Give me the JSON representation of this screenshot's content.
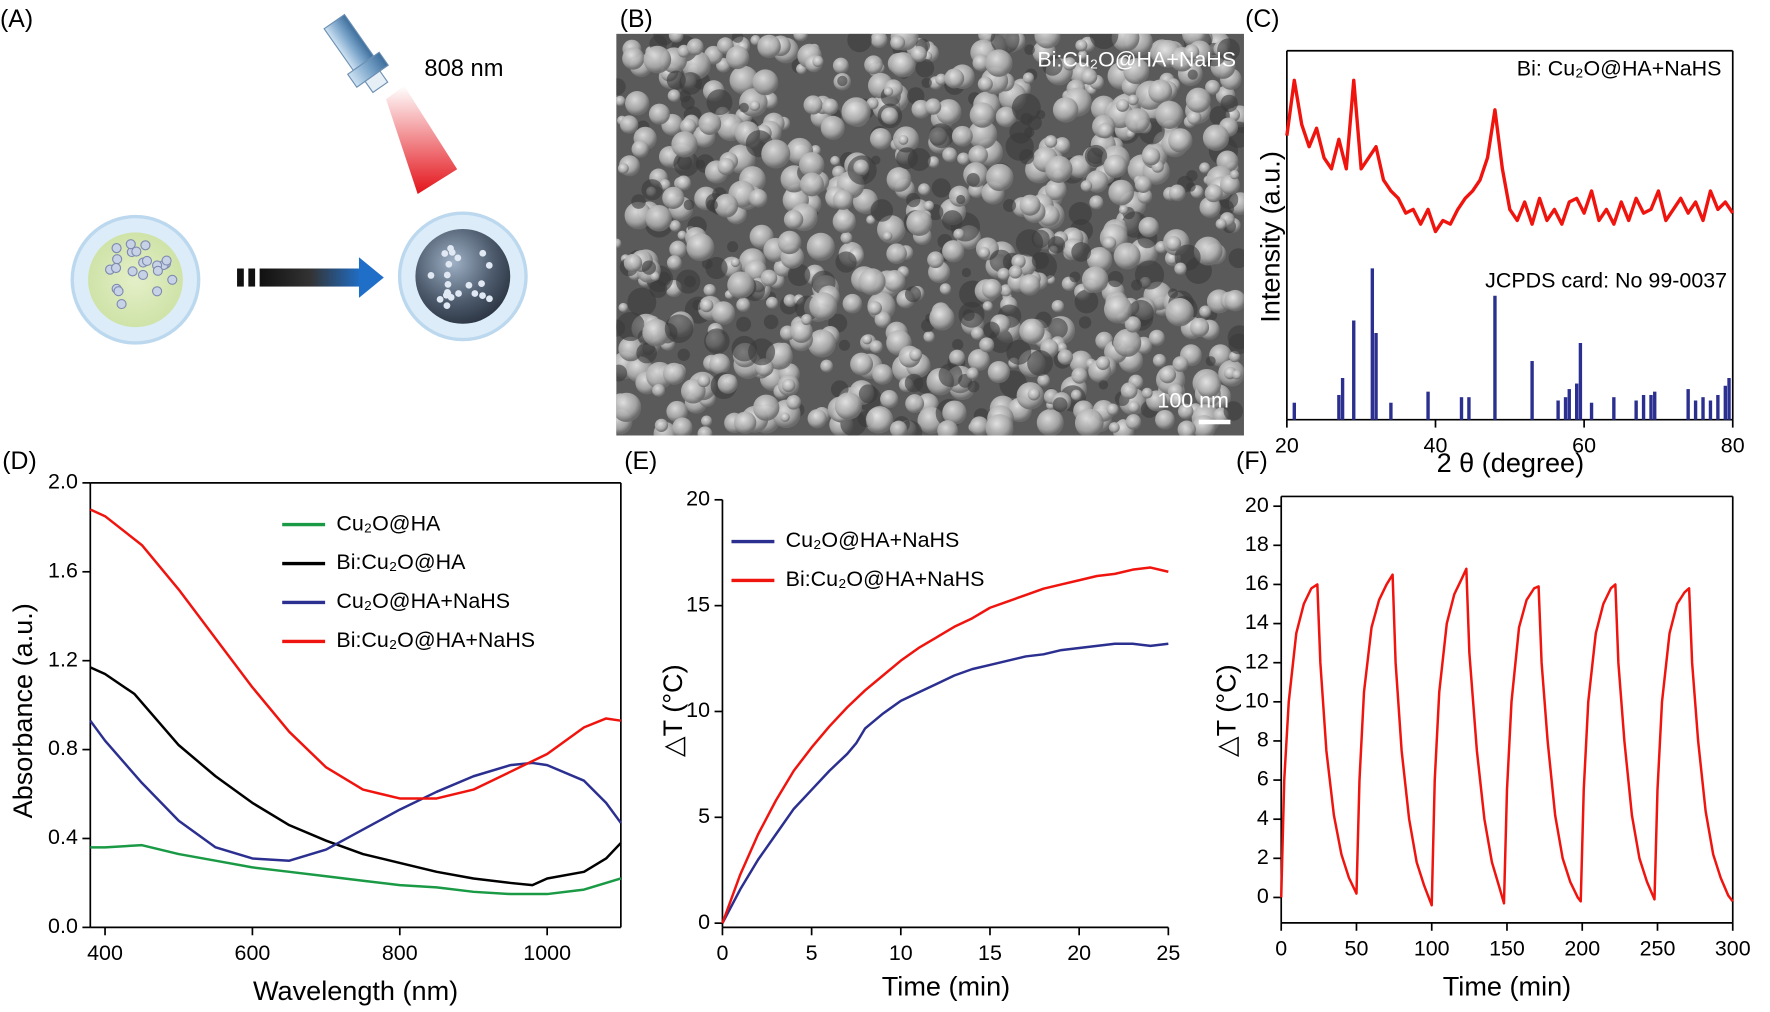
{
  "figure": {
    "panel_labels": [
      "(A)",
      "(B)",
      "(C)",
      "(D)",
      "(E)",
      "(F)"
    ],
    "schematic": {
      "laser_label": "808 nm"
    },
    "micrograph": {
      "label": "Bi:Cu₂O@HA+NaHS",
      "scale_bar": "100 nm"
    }
  },
  "chart_data": [
    {
      "type": "line",
      "xlabel": "2 θ (degree)",
      "ylabel": "Intensity (a.u.)",
      "xlim": [
        20,
        80
      ],
      "ylim": [
        0,
        100
      ],
      "xticks": [
        20,
        40,
        60,
        80
      ],
      "series": [
        {
          "name": "Bi: Cu₂O@HA+NaHS",
          "color": "#f0140f",
          "x": [
            20,
            21,
            22,
            23,
            24,
            25,
            26,
            27,
            28,
            29,
            30,
            31,
            32,
            33,
            34,
            35,
            36,
            37,
            38,
            39,
            40,
            41,
            42,
            43,
            44,
            45,
            46,
            47,
            48,
            49,
            50,
            51,
            52,
            53,
            54,
            55,
            56,
            57,
            58,
            59,
            60,
            61,
            62,
            63,
            64,
            65,
            66,
            67,
            68,
            69,
            70,
            71,
            72,
            73,
            74,
            75,
            76,
            77,
            78,
            79,
            80
          ],
          "values": [
            77,
            92,
            80,
            74,
            79,
            71,
            68,
            76,
            68,
            92,
            68,
            71,
            74,
            65,
            62,
            60,
            56,
            57,
            53,
            57,
            51,
            54,
            53,
            57,
            60,
            62,
            65,
            71,
            84,
            68,
            57,
            54,
            59,
            53,
            60,
            54,
            57,
            53,
            59,
            60,
            56,
            62,
            54,
            57,
            53,
            59,
            54,
            60,
            56,
            57,
            62,
            54,
            57,
            60,
            56,
            59,
            54,
            62,
            57,
            59,
            56
          ]
        },
        {
          "name": "JCPDS card: No 99-0037",
          "color": "#2b2f8f",
          "style": "stick",
          "x": [
            21,
            27,
            27.5,
            29,
            31.5,
            32,
            34,
            39,
            43.5,
            44.5,
            48,
            53,
            56.5,
            57.5,
            58,
            59,
            59.5,
            61,
            64,
            67,
            68,
            69,
            69.5,
            74,
            75,
            76,
            77,
            78,
            79,
            79.5
          ],
          "values": [
            4.6,
            6.7,
            11.3,
            26.9,
            41,
            23.5,
            4.6,
            7.6,
            6.1,
            6.1,
            33.6,
            15.9,
            5.2,
            6.1,
            8.3,
            9.8,
            20.8,
            4.6,
            6.1,
            5.2,
            6.7,
            6.7,
            7.6,
            8.3,
            5.2,
            6.1,
            5.2,
            6.7,
            9.2,
            11.3
          ]
        }
      ]
    },
    {
      "type": "line",
      "xlabel": "Wavelength (nm)",
      "ylabel": "Absorbance (a.u.)",
      "xlim": [
        380,
        1100
      ],
      "ylim": [
        0,
        2
      ],
      "xticks": [
        400,
        600,
        800,
        1000
      ],
      "yticks": [
        {
          "value": 0,
          "label": "0.0"
        },
        0.4,
        0.8,
        1.2,
        1.6,
        {
          "value": 2,
          "label": "2.0"
        }
      ],
      "legend": "upper right",
      "series": [
        {
          "name": "Cu₂O@HA",
          "color": "#1a9a45",
          "x": [
            380,
            400,
            450,
            500,
            550,
            600,
            650,
            700,
            750,
            800,
            850,
            900,
            950,
            980,
            1000,
            1050,
            1100
          ],
          "values": [
            0.36,
            0.36,
            0.37,
            0.33,
            0.3,
            0.27,
            0.25,
            0.23,
            0.21,
            0.19,
            0.18,
            0.16,
            0.15,
            0.15,
            0.15,
            0.17,
            0.22
          ]
        },
        {
          "name": "Bi:Cu₂O@HA",
          "color": "#000000",
          "x": [
            380,
            400,
            440,
            500,
            550,
            600,
            650,
            700,
            750,
            800,
            850,
            900,
            950,
            980,
            1000,
            1050,
            1080,
            1100
          ],
          "values": [
            1.17,
            1.14,
            1.05,
            0.82,
            0.68,
            0.56,
            0.46,
            0.39,
            0.33,
            0.29,
            0.25,
            0.22,
            0.2,
            0.19,
            0.22,
            0.25,
            0.31,
            0.38
          ]
        },
        {
          "name": "Cu₂O@HA+NaHS",
          "color": "#2b2f8f",
          "x": [
            380,
            400,
            450,
            500,
            550,
            600,
            650,
            700,
            750,
            800,
            850,
            900,
            950,
            980,
            1000,
            1050,
            1080,
            1100
          ],
          "values": [
            0.93,
            0.84,
            0.65,
            0.48,
            0.36,
            0.31,
            0.3,
            0.35,
            0.44,
            0.53,
            0.61,
            0.68,
            0.73,
            0.74,
            0.73,
            0.66,
            0.56,
            0.47
          ]
        },
        {
          "name": "Bi:Cu₂O@HA+NaHS",
          "color": "#f0140f",
          "x": [
            380,
            400,
            450,
            500,
            550,
            600,
            650,
            700,
            750,
            800,
            850,
            900,
            950,
            1000,
            1050,
            1080,
            1100
          ],
          "values": [
            1.88,
            1.85,
            1.72,
            1.52,
            1.3,
            1.08,
            0.88,
            0.72,
            0.62,
            0.58,
            0.58,
            0.62,
            0.7,
            0.78,
            0.9,
            0.94,
            0.93
          ]
        }
      ]
    },
    {
      "type": "line",
      "xlabel": "Time (min)",
      "ylabel": "△T (°C)",
      "xlim": [
        0,
        25
      ],
      "ylim": [
        -0.2,
        20
      ],
      "xticks": [
        0,
        5,
        10,
        15,
        20,
        25
      ],
      "yticks": [
        0,
        5,
        10,
        15,
        20
      ],
      "legend": "upper left",
      "series": [
        {
          "name": "Cu₂O@HA+NaHS",
          "color": "#2b2f8f",
          "x": [
            0,
            1,
            2,
            3,
            4,
            5,
            6,
            7,
            7.5,
            8,
            9,
            10,
            11,
            12,
            13,
            14,
            15,
            16,
            17,
            18,
            19,
            20,
            21,
            22,
            23,
            24,
            25
          ],
          "values": [
            0,
            1.6,
            3.0,
            4.2,
            5.4,
            6.3,
            7.2,
            8.0,
            8.5,
            9.2,
            9.9,
            10.5,
            10.9,
            11.3,
            11.7,
            12.0,
            12.2,
            12.4,
            12.6,
            12.7,
            12.9,
            13.0,
            13.1,
            13.2,
            13.2,
            13.1,
            13.2
          ]
        },
        {
          "name": "Bi:Cu₂O@HA+NaHS",
          "color": "#f0140f",
          "x": [
            0,
            1,
            2,
            3,
            4,
            5,
            6,
            7,
            8,
            9,
            10,
            11,
            12,
            13,
            14,
            15,
            16,
            17,
            18,
            19,
            20,
            21,
            22,
            23,
            24,
            25
          ],
          "values": [
            0,
            2.3,
            4.2,
            5.8,
            7.2,
            8.3,
            9.3,
            10.2,
            11.0,
            11.7,
            12.4,
            13.0,
            13.5,
            14.0,
            14.4,
            14.9,
            15.2,
            15.5,
            15.8,
            16.0,
            16.2,
            16.4,
            16.5,
            16.7,
            16.8,
            16.6
          ]
        }
      ]
    },
    {
      "type": "line",
      "xlabel": "Time (min)",
      "ylabel": "△T (°C)",
      "xlim": [
        0,
        300
      ],
      "ylim": [
        -1.3,
        20.5
      ],
      "xticks": [
        0,
        50,
        100,
        150,
        200,
        250,
        300
      ],
      "yticks": [
        0,
        2,
        4,
        6,
        8,
        10,
        12,
        14,
        16,
        18,
        20
      ],
      "color": "#f0140f",
      "x": [
        0,
        2,
        5,
        10,
        15,
        20,
        24,
        26,
        30,
        35,
        40,
        45,
        50,
        52,
        55,
        60,
        65,
        70,
        74,
        76,
        80,
        85,
        90,
        95,
        100,
        102,
        105,
        110,
        115,
        120,
        123,
        125,
        130,
        135,
        140,
        145,
        148,
        150,
        153,
        158,
        163,
        168,
        171,
        173,
        177,
        182,
        187,
        192,
        197,
        199,
        201,
        204,
        209,
        214,
        219,
        222,
        224,
        228,
        233,
        238,
        243,
        248,
        250,
        253,
        258,
        263,
        268,
        271,
        273,
        277,
        282,
        287,
        292,
        297,
        300
      ],
      "values": [
        0,
        6,
        10,
        13.5,
        15,
        15.8,
        16,
        12,
        7.5,
        4.2,
        2.2,
        1,
        0.2,
        6,
        10.5,
        13.8,
        15.2,
        16,
        16.5,
        12,
        7.5,
        4,
        1.8,
        0.6,
        -0.4,
        6,
        10.5,
        14,
        15.5,
        16.3,
        16.8,
        12.5,
        7.5,
        4,
        1.8,
        0.5,
        -0.3,
        5.5,
        10,
        13.8,
        15.2,
        15.8,
        15.9,
        12,
        8,
        4.2,
        2,
        0.8,
        0,
        -0.2,
        5.5,
        10,
        13.5,
        15,
        15.8,
        16,
        12,
        8,
        4.2,
        2,
        0.8,
        -0.1,
        5.5,
        10,
        13.5,
        15,
        15.6,
        15.8,
        12,
        8,
        4.4,
        2.2,
        1,
        0.1,
        -0.2
      ]
    }
  ]
}
